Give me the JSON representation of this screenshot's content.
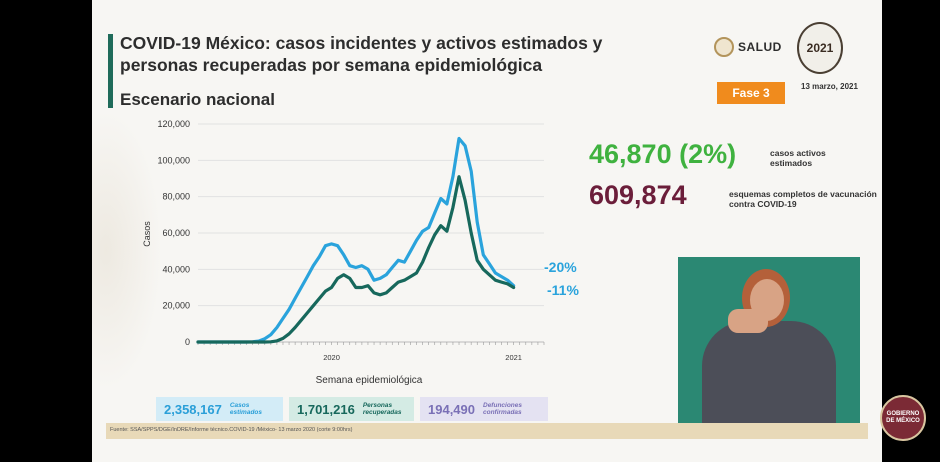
{
  "title": "COVID-19 México: casos incidentes y activos estimados y personas recuperadas por semana epidemiológica",
  "subtitle": "Escenario nacional",
  "logos": {
    "salud": "SALUD",
    "year": "2021"
  },
  "phase": "Fase 3",
  "date": "13 marzo, 2021",
  "stats": {
    "active_value": "46,870 (2%)",
    "active_label": "casos activos estimados",
    "vacc_value": "609,874",
    "vacc_label": "esquemas completos de vacunación contra COVID-19"
  },
  "totals": {
    "cases_value": "2,358,167",
    "cases_label": "Casos estimados",
    "recovered_value": "1,701,216",
    "recovered_label": "Personas recuperadas",
    "deaths_value": "194,490",
    "deaths_label": "Defunciones confirmadas"
  },
  "source": "Fuente: SSA/SPPS/DGE/InDRE/Informe técnico.COVID-19 /México- 13 marzo 2020 (corte 9:00hrs)",
  "gob_badge": "GOBIERNO DE MÉXICO",
  "colors": {
    "cases": "#2aa3dc",
    "recovered": "#17685c",
    "active": "#3fb23f",
    "vacc": "#6b1e3a"
  },
  "chart_data": {
    "type": "line",
    "xlabel": "Semana epidemiológica",
    "ylabel": "Casos",
    "ylim": [
      0,
      120000
    ],
    "yticks": [
      0,
      20000,
      40000,
      60000,
      80000,
      100000,
      120000
    ],
    "year_labels": [
      {
        "week": 22,
        "label": "2020"
      },
      {
        "week": 52,
        "label": "2021"
      }
    ],
    "weeks": [
      0,
      1,
      2,
      3,
      4,
      5,
      6,
      7,
      8,
      9,
      10,
      11,
      12,
      13,
      14,
      15,
      16,
      17,
      18,
      19,
      20,
      21,
      22,
      23,
      24,
      25,
      26,
      27,
      28,
      29,
      30,
      31,
      32,
      33,
      34,
      35,
      36,
      37,
      38,
      39,
      40,
      41,
      42,
      43,
      44,
      45,
      46,
      47,
      48,
      49,
      50,
      51,
      52,
      53,
      54,
      55,
      56,
      57
    ],
    "series": [
      {
        "values": [
          0,
          0,
          0,
          0,
          0,
          0,
          0,
          0,
          0,
          100,
          500,
          1800,
          4000,
          8000,
          13000,
          18000,
          24000,
          30000,
          36000,
          42000,
          47000,
          53000,
          54000,
          53000,
          48000,
          42000,
          41000,
          42000,
          40000,
          34000,
          35000,
          37000,
          41000,
          45000,
          44000,
          50000,
          56000,
          61000,
          63000,
          71000,
          79000,
          76000,
          91000,
          112000,
          108000,
          94000,
          66000,
          48000,
          43000,
          38000,
          36000,
          34000,
          31000,
          0,
          0,
          0,
          0,
          0
        ]
      },
      {
        "values": [
          0,
          0,
          0,
          0,
          0,
          0,
          0,
          0,
          0,
          0,
          0,
          0,
          100,
          600,
          2000,
          4500,
          8000,
          12000,
          16000,
          20000,
          24000,
          28000,
          30000,
          35000,
          37000,
          35000,
          30000,
          30000,
          31000,
          27000,
          26000,
          27000,
          30000,
          33000,
          34000,
          36000,
          38000,
          44000,
          52000,
          59000,
          64000,
          61000,
          74000,
          91000,
          78000,
          60000,
          45000,
          40000,
          37000,
          34000,
          33000,
          32000,
          30000,
          0,
          0,
          0,
          0,
          0
        ]
      }
    ],
    "annotations": [
      {
        "text": "-20%"
      },
      {
        "text": "-11%"
      }
    ]
  }
}
